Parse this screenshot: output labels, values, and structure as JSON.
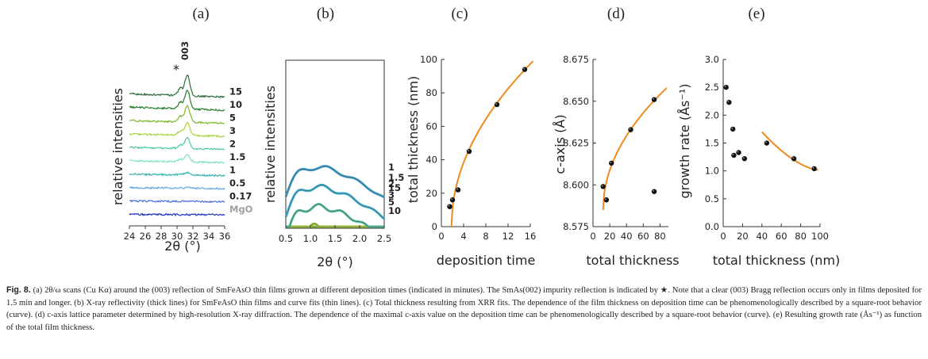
{
  "panel_letters": [
    "(a)",
    "(b)",
    "(c)",
    "(d)",
    "(e)"
  ],
  "colors": {
    "thickness_series": [
      "#2e6b3a",
      "#267a2a",
      "#7cb82a",
      "#a8d23c",
      "#52c99a",
      "#80e0c8",
      "#38b4b0",
      "#6aa8e0",
      "#4a6fd8",
      "#1a2fc4",
      "#b0b0b0"
    ],
    "fit": "#f08a1e",
    "marker": "#111111",
    "xrr_series": [
      "#3a7f3f",
      "#2e8a34",
      "#8cc43a",
      "#a2cd3a",
      "#4fc0a0",
      "#3ab0d4",
      "#3a9fd0"
    ]
  },
  "caption": {
    "label": "Fig. 8.",
    "text": "(a) 2θ/ω scans (Cu Kα) around the (003) reflection of SmFeAsO thin films grown at different deposition times (indicated in minutes). The SmAs(002) impurity reflection is indicated by ★. Note that a clear (003) Bragg reflection occurs only in films deposited for 1.5 min and longer. (b) X-ray reflectivity (thick lines) for SmFeAsO thin films and curve fits (thin lines). (c) Total thickness resulting from XRR fits. The dependence of the film thickness on deposition time can be phenomenologically described by a square-root behavior (curve). (d) c-axis lattice parameter determined by high-resolution X-ray diffraction. The dependence of the maximal c-axis value on the deposition time can be phenomenologically described by a square-root behavior (curve). (e) Resulting growth rate (Ås⁻¹) as function of the total film thickness."
  },
  "chart_data": [
    {
      "type": "line",
      "panel": "(a)",
      "xlabel": "2θ (°)",
      "ylabel": "relative intensities",
      "xlim": [
        24,
        36
      ],
      "xticks": [
        "24",
        "26",
        "28",
        "30",
        "32",
        "34",
        "36"
      ],
      "annotations": [
        "003",
        "*"
      ],
      "series": [
        {
          "name": "15",
          "peak": 1.0
        },
        {
          "name": "10",
          "peak": 0.9
        },
        {
          "name": "5",
          "peak": 0.8
        },
        {
          "name": "3",
          "peak": 0.6
        },
        {
          "name": "2",
          "peak": 0.5
        },
        {
          "name": "1.5",
          "peak": 0.35
        },
        {
          "name": "1",
          "peak": 0.12
        },
        {
          "name": "0.5",
          "peak": 0.05
        },
        {
          "name": "0.17",
          "peak": 0.0
        },
        {
          "name": "MgO",
          "peak": 0.0
        }
      ]
    },
    {
      "type": "line",
      "panel": "(b)",
      "xlabel": "2θ (°)",
      "ylabel": "relative intensities",
      "xlim": [
        0.5,
        2.5
      ],
      "xticks": [
        "0.5",
        "1.0",
        "1.5",
        "2.0",
        "2.5"
      ],
      "series": [
        {
          "name": "15",
          "period": 0.15
        },
        {
          "name": "10",
          "period": 0.2
        },
        {
          "name": "5",
          "period": 0.3
        },
        {
          "name": "3",
          "period": 0.38
        },
        {
          "name": "2",
          "period": 0.46
        },
        {
          "name": "1.5",
          "period": 0.52
        },
        {
          "name": "1",
          "period": 0.6
        }
      ]
    },
    {
      "type": "scatter",
      "panel": "(c)",
      "xlabel": "deposition time",
      "ylabel": "total thickness (nm)",
      "xlim": [
        0,
        16
      ],
      "ylim": [
        0,
        100
      ],
      "xticks": [
        "0",
        "4",
        "8",
        "12",
        "16"
      ],
      "yticks": [
        "0",
        "20",
        "40",
        "60",
        "80",
        "100"
      ],
      "points": [
        [
          1.5,
          12
        ],
        [
          2,
          16
        ],
        [
          3,
          22
        ],
        [
          5,
          45
        ],
        [
          10,
          73
        ],
        [
          15,
          94
        ]
      ],
      "fit": {
        "form": "sqrt",
        "x": [
          1.8,
          16.5
        ],
        "y": [
          0,
          99
        ]
      }
    },
    {
      "type": "scatter",
      "panel": "(d)",
      "xlabel": "total thickness",
      "ylabel": "c-axis (Å)",
      "xlim": [
        0,
        90
      ],
      "ylim": [
        8.575,
        8.675
      ],
      "xticks": [
        "0",
        "20",
        "40",
        "60",
        "80"
      ],
      "yticks": [
        "8.575",
        "8.600",
        "8.625",
        "8.650",
        "8.675"
      ],
      "points": [
        [
          12,
          8.599
        ],
        [
          16,
          8.591
        ],
        [
          22,
          8.613
        ],
        [
          45,
          8.633
        ],
        [
          73,
          8.651
        ],
        [
          73,
          8.596
        ]
      ],
      "fit": {
        "form": "sqrt",
        "x": [
          12,
          88
        ],
        "y": [
          8.585,
          8.658
        ]
      }
    },
    {
      "type": "scatter",
      "panel": "(e)",
      "xlabel": "total thickness (nm)",
      "ylabel": "growth rate (Ås⁻¹)",
      "xlim": [
        0,
        100
      ],
      "ylim": [
        0.0,
        3.0
      ],
      "xticks": [
        "0",
        "20",
        "40",
        "60",
        "80",
        "100"
      ],
      "yticks": [
        "0.0",
        "0.5",
        "1.0",
        "1.5",
        "2.0",
        "2.5",
        "3.0"
      ],
      "points": [
        [
          3,
          2.5
        ],
        [
          6,
          2.23
        ],
        [
          10,
          1.75
        ],
        [
          11,
          1.28
        ],
        [
          16,
          1.33
        ],
        [
          22,
          1.22
        ],
        [
          45,
          1.5
        ],
        [
          73,
          1.22
        ],
        [
          94,
          1.04
        ]
      ],
      "fit": {
        "form": "decay",
        "x": [
          40,
          98
        ],
        "y": [
          1.7,
          1.02
        ]
      }
    }
  ]
}
